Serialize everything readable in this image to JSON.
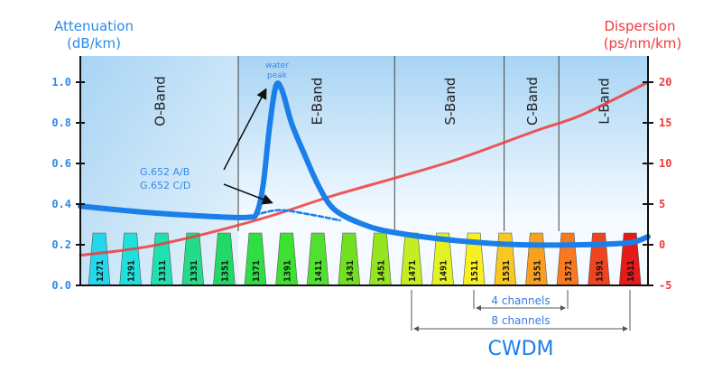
{
  "chart_data": {
    "type": "line",
    "left_axis": {
      "label_line1": "Attenuation",
      "label_line2": "(dB/km)",
      "ticks": [
        "0.0",
        "0.2",
        "0.4",
        "0.6",
        "0.8",
        "1.0"
      ],
      "range": [
        0,
        1.0
      ],
      "color": "#2a8ae8"
    },
    "right_axis": {
      "label_line1": "Dispersion",
      "label_line2": "(ps/nm/km)",
      "ticks": [
        "-5",
        "0",
        "5",
        "10",
        "15",
        "20"
      ],
      "range": [
        -5,
        20
      ],
      "color": "#f03a3a"
    },
    "x_range_nm": [
      1259,
      1622
    ],
    "bands": [
      {
        "name": "O-Band",
        "start": 1259,
        "end": 1360
      },
      {
        "name": "E-Band",
        "start": 1360,
        "end": 1460
      },
      {
        "name": "S-Band",
        "start": 1460,
        "end": 1530
      },
      {
        "name": "C-Band",
        "start": 1530,
        "end": 1565
      },
      {
        "name": "L-Band",
        "start": 1565,
        "end": 1622
      }
    ],
    "series": [
      {
        "name": "G.652 A/B",
        "axis": "left",
        "color": "#1a7fe8",
        "style": "solid",
        "x": [
          1259,
          1300,
          1340,
          1366,
          1372,
          1376,
          1380,
          1384,
          1388,
          1394,
          1402,
          1412,
          1422,
          1440,
          1460,
          1500,
          1540,
          1580,
          1610,
          1622
        ],
        "y": [
          0.39,
          0.36,
          0.34,
          0.335,
          0.36,
          0.5,
          0.78,
          0.98,
          0.96,
          0.8,
          0.65,
          0.48,
          0.37,
          0.3,
          0.26,
          0.22,
          0.2,
          0.2,
          0.21,
          0.24
        ]
      },
      {
        "name": "G.652 C/D",
        "axis": "left",
        "color": "#1a7fe8",
        "style": "dashed",
        "x": [
          1366,
          1385,
          1405,
          1425
        ],
        "y": [
          0.335,
          0.37,
          0.35,
          0.32
        ]
      },
      {
        "axis": "right",
        "color": "#f03a3a",
        "style": "solid",
        "x": [
          1259,
          1300,
          1340,
          1380,
          1420,
          1460,
          1500,
          1550,
          1580,
          1622
        ],
        "y": [
          -1.3,
          -0.3,
          1.4,
          3.5,
          6,
          8.2,
          10.5,
          14,
          16,
          20
        ]
      }
    ],
    "annotations": {
      "water_peak_line1": "water",
      "water_peak_line2": "peak",
      "ab": "G.652 A/B",
      "cd": "G.652 C/D"
    },
    "channels": [
      {
        "nm": "1271",
        "color": "#22d8ea"
      },
      {
        "nm": "1291",
        "color": "#20e0dc"
      },
      {
        "nm": "1311",
        "color": "#20e0b0"
      },
      {
        "nm": "1331",
        "color": "#22dc88"
      },
      {
        "nm": "1351",
        "color": "#22d866"
      },
      {
        "nm": "1371",
        "color": "#30de44"
      },
      {
        "nm": "1391",
        "color": "#3ee032"
      },
      {
        "nm": "1411",
        "color": "#52e030"
      },
      {
        "nm": "1431",
        "color": "#72e022"
      },
      {
        "nm": "1451",
        "color": "#94e420"
      },
      {
        "nm": "1471",
        "color": "#c4ee22"
      },
      {
        "nm": "1491",
        "color": "#e2f222"
      },
      {
        "nm": "1511",
        "color": "#f8ee22"
      },
      {
        "nm": "1531",
        "color": "#f8c820"
      },
      {
        "nm": "1551",
        "color": "#f8a020"
      },
      {
        "nm": "1571",
        "color": "#f87a20"
      },
      {
        "nm": "1591",
        "color": "#f04420"
      },
      {
        "nm": "1611",
        "color": "#e61a18"
      }
    ],
    "spans": {
      "four": "4 channels",
      "eight": "8 channels",
      "title": "CWDM"
    }
  }
}
